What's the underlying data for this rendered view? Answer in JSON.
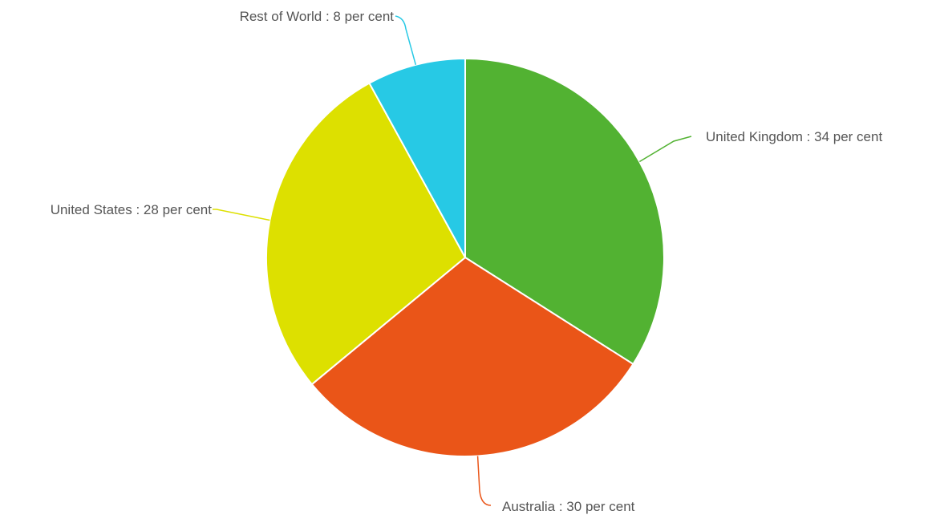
{
  "chart_data": {
    "type": "pie",
    "slices": [
      {
        "name": "United Kingdom",
        "value": 34,
        "color": "#52b232",
        "label": "United Kingdom : 34 per cent"
      },
      {
        "name": "Australia",
        "value": 30,
        "color": "#ea5518",
        "label": "Australia : 30 per cent"
      },
      {
        "name": "United States",
        "value": 28,
        "color": "#dde000",
        "label": "United States : 28 per cent"
      },
      {
        "name": "Rest of World",
        "value": 8,
        "color": "#27c9e5",
        "label": "Rest of World : 8 per cent"
      }
    ]
  }
}
